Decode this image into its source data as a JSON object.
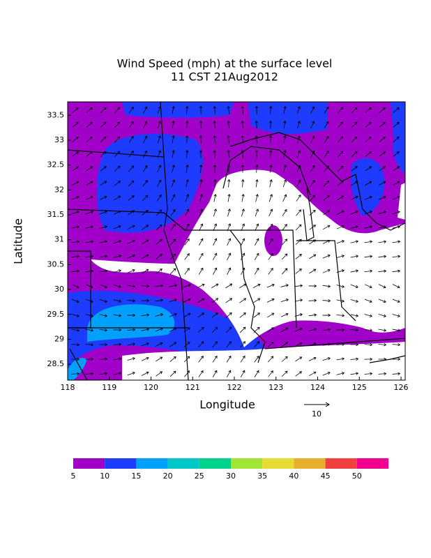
{
  "title": [
    "Wind Speed (mph) at the surface level",
    "11 CST 21Aug2012"
  ],
  "map": {
    "xlabel": "Longitude",
    "ylabel": "Latitude",
    "xlim": [
      118,
      126.1
    ],
    "ylim": [
      28.18,
      33.77
    ],
    "xticks": [
      118,
      119,
      120,
      121,
      122,
      123,
      124,
      125,
      126
    ],
    "yticks": [
      28.5,
      29,
      29.5,
      30,
      30.5,
      31,
      31.5,
      32,
      32.5,
      33,
      33.5
    ]
  },
  "vector_reference": "10",
  "colorbar": {
    "labels": [
      5,
      10,
      15,
      20,
      25,
      30,
      35,
      40,
      45,
      50
    ],
    "colors": [
      "#a000c8",
      "#1e3cff",
      "#00a0ff",
      "#00c8c8",
      "#00d28c",
      "#a0e632",
      "#e6dc32",
      "#e6af2d",
      "#f04040",
      "#f0008c"
    ]
  }
}
